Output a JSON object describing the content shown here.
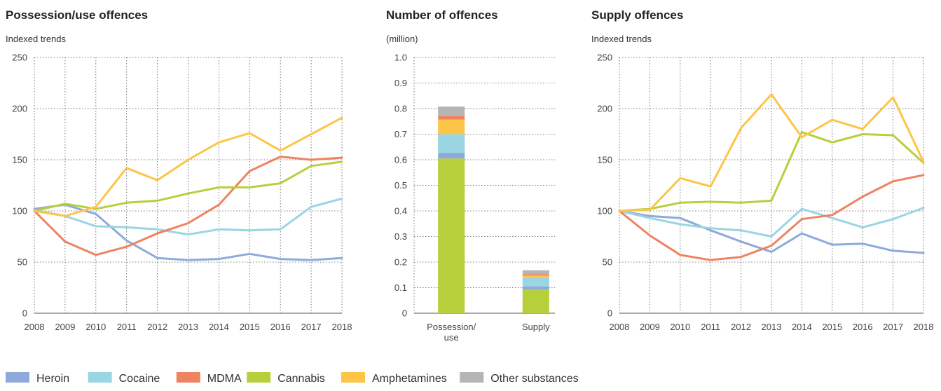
{
  "colors": {
    "Heroin": "#8eaadb",
    "Cocaine": "#99d5e3",
    "MDMA": "#ee8361",
    "Cannabis": "#b8cf3c",
    "Amphetamines": "#fdc548",
    "Other substances": "#b5b5b5"
  },
  "legend": [
    "Heroin",
    "Cocaine",
    "MDMA",
    "Cannabis",
    "Amphetamines",
    "Other substances"
  ],
  "chart_data": [
    {
      "type": "line",
      "title": "Possession/use offences",
      "subtitle": "Indexed trends",
      "x": [
        2008,
        2009,
        2010,
        2011,
        2012,
        2013,
        2014,
        2015,
        2016,
        2017,
        2018
      ],
      "ylim": [
        0,
        250
      ],
      "yticks": [
        0,
        50,
        100,
        150,
        200,
        250
      ],
      "grid": true,
      "series": [
        {
          "name": "Heroin",
          "values": [
            102,
            106,
            97,
            71,
            54,
            52,
            53,
            58,
            53,
            52,
            54
          ]
        },
        {
          "name": "Cocaine",
          "values": [
            101,
            95,
            85,
            84,
            82,
            77,
            82,
            81,
            82,
            104,
            112
          ]
        },
        {
          "name": "MDMA",
          "values": [
            100,
            70,
            57,
            65,
            78,
            88,
            106,
            139,
            153,
            150,
            152
          ]
        },
        {
          "name": "Cannabis",
          "values": [
            100,
            107,
            102,
            108,
            110,
            117,
            123,
            123,
            127,
            144,
            148
          ]
        },
        {
          "name": "Amphetamines",
          "values": [
            100,
            95,
            104,
            142,
            130,
            150,
            167,
            176,
            159,
            175,
            191
          ]
        }
      ]
    },
    {
      "type": "bar",
      "stacked": true,
      "title": "Number of offences",
      "subtitle": "(million)",
      "categories": [
        "Possession/\nuse",
        "Supply"
      ],
      "ylim": [
        0,
        1.0
      ],
      "yticks": [
        "0",
        "0.1",
        "0.2",
        "0.3",
        "0.4",
        "0.5",
        "0.6",
        "0.7",
        "0.8",
        "0.9",
        "1.0"
      ],
      "grid": true,
      "series": [
        {
          "name": "Cannabis",
          "values": [
            0.605,
            0.093
          ]
        },
        {
          "name": "Heroin",
          "values": [
            0.022,
            0.012
          ]
        },
        {
          "name": "Cocaine",
          "values": [
            0.073,
            0.033
          ]
        },
        {
          "name": "Amphetamines",
          "values": [
            0.057,
            0.009
          ]
        },
        {
          "name": "MDMA",
          "values": [
            0.015,
            0.006
          ]
        },
        {
          "name": "Other substances",
          "values": [
            0.036,
            0.015
          ]
        }
      ]
    },
    {
      "type": "line",
      "title": "Supply offences",
      "subtitle": "Indexed trends",
      "x": [
        2008,
        2009,
        2010,
        2011,
        2012,
        2013,
        2014,
        2015,
        2016,
        2017,
        2018
      ],
      "ylim": [
        0,
        250
      ],
      "yticks": [
        0,
        50,
        100,
        150,
        200,
        250
      ],
      "grid": true,
      "series": [
        {
          "name": "Heroin",
          "values": [
            100,
            95,
            93,
            81,
            70,
            60,
            78,
            67,
            68,
            61,
            59
          ]
        },
        {
          "name": "Cocaine",
          "values": [
            100,
            93,
            87,
            83,
            81,
            75,
            102,
            93,
            84,
            92,
            103
          ]
        },
        {
          "name": "MDMA",
          "values": [
            100,
            76,
            57,
            52,
            55,
            66,
            92,
            96,
            114,
            129,
            135
          ]
        },
        {
          "name": "Cannabis",
          "values": [
            100,
            102,
            108,
            109,
            108,
            110,
            177,
            167,
            175,
            174,
            147
          ]
        },
        {
          "name": "Amphetamines",
          "values": [
            100,
            101,
            132,
            124,
            181,
            214,
            172,
            189,
            180,
            211,
            148
          ]
        }
      ]
    }
  ]
}
